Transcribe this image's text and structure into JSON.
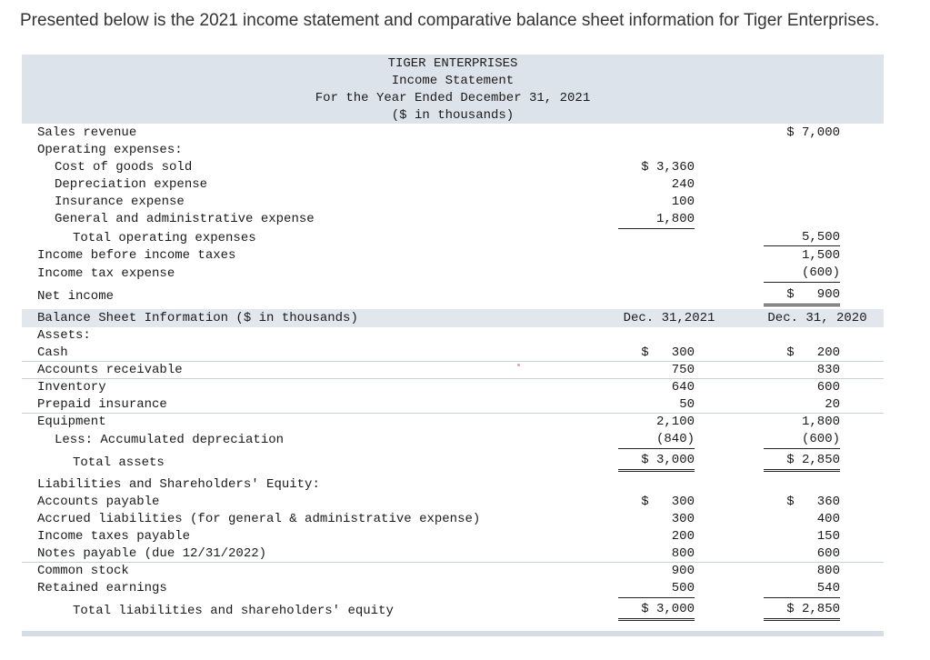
{
  "intro": "Presented below is the 2021 income statement and comparative balance sheet information for Tiger Enterprises.",
  "header": {
    "company": "TIGER ENTERPRISES",
    "statement": "Income Statement",
    "period": "For the Year Ended December 31, 2021",
    "units": "($ in thousands)"
  },
  "income": {
    "sales_label": "Sales revenue",
    "sales_value": "$ 7,000",
    "opex_label": "Operating expenses:",
    "items": [
      {
        "label": "Cost of goods sold",
        "value": "$ 3,360"
      },
      {
        "label": "Depreciation expense",
        "value": "240"
      },
      {
        "label": "Insurance expense",
        "value": "100"
      },
      {
        "label": "General and administrative expense",
        "value": "1,800"
      }
    ],
    "total_opex_label": "Total operating expenses",
    "total_opex_value": "5,500",
    "ibt_label": "Income before income taxes",
    "ibt_value": "1,500",
    "tax_label": "Income tax expense",
    "tax_value": "(600)",
    "net_label": "Net income",
    "net_value": "$   900"
  },
  "balance": {
    "section_label": "Balance Sheet Information ($ in thousands)",
    "col_2021": "Dec. 31,2021",
    "col_2020": "Dec. 31, 2020",
    "assets_label": "Assets:",
    "assets": [
      {
        "label": "Cash",
        "v2021": "$   300",
        "v2020": "$   200"
      },
      {
        "label": "Accounts receivable",
        "v2021": "750",
        "v2020": "830"
      },
      {
        "label": "Inventory",
        "v2021": "640",
        "v2020": "600"
      },
      {
        "label": "Prepaid insurance",
        "v2021": "50",
        "v2020": "20"
      },
      {
        "label": "Equipment",
        "v2021": "2,100",
        "v2020": "1,800"
      },
      {
        "label": "Less: Accumulated depreciation",
        "v2021": "(840)",
        "v2020": "(600)"
      }
    ],
    "total_assets_label": "Total assets",
    "total_assets_2021": "$ 3,000",
    "total_assets_2020": "$ 2,850",
    "liab_label": "Liabilities and Shareholders' Equity:",
    "liabilities": [
      {
        "label": "Accounts payable",
        "v2021": "$   300",
        "v2020": "$   360"
      },
      {
        "label": "Accrued liabilities (for general & administrative expense)",
        "v2021": "300",
        "v2020": "400"
      },
      {
        "label": "Income taxes payable",
        "v2021": "200",
        "v2020": "150"
      },
      {
        "label": "Notes payable (due 12/31/2022)",
        "v2021": "800",
        "v2020": "600"
      },
      {
        "label": "Common stock",
        "v2021": "900",
        "v2020": "800"
      },
      {
        "label": "Retained earnings",
        "v2021": "500",
        "v2020": "540"
      }
    ],
    "total_liab_label": "Total liabilities and shareholders' equity",
    "total_liab_2021": "$ 3,000",
    "total_liab_2020": "$ 2,850"
  }
}
